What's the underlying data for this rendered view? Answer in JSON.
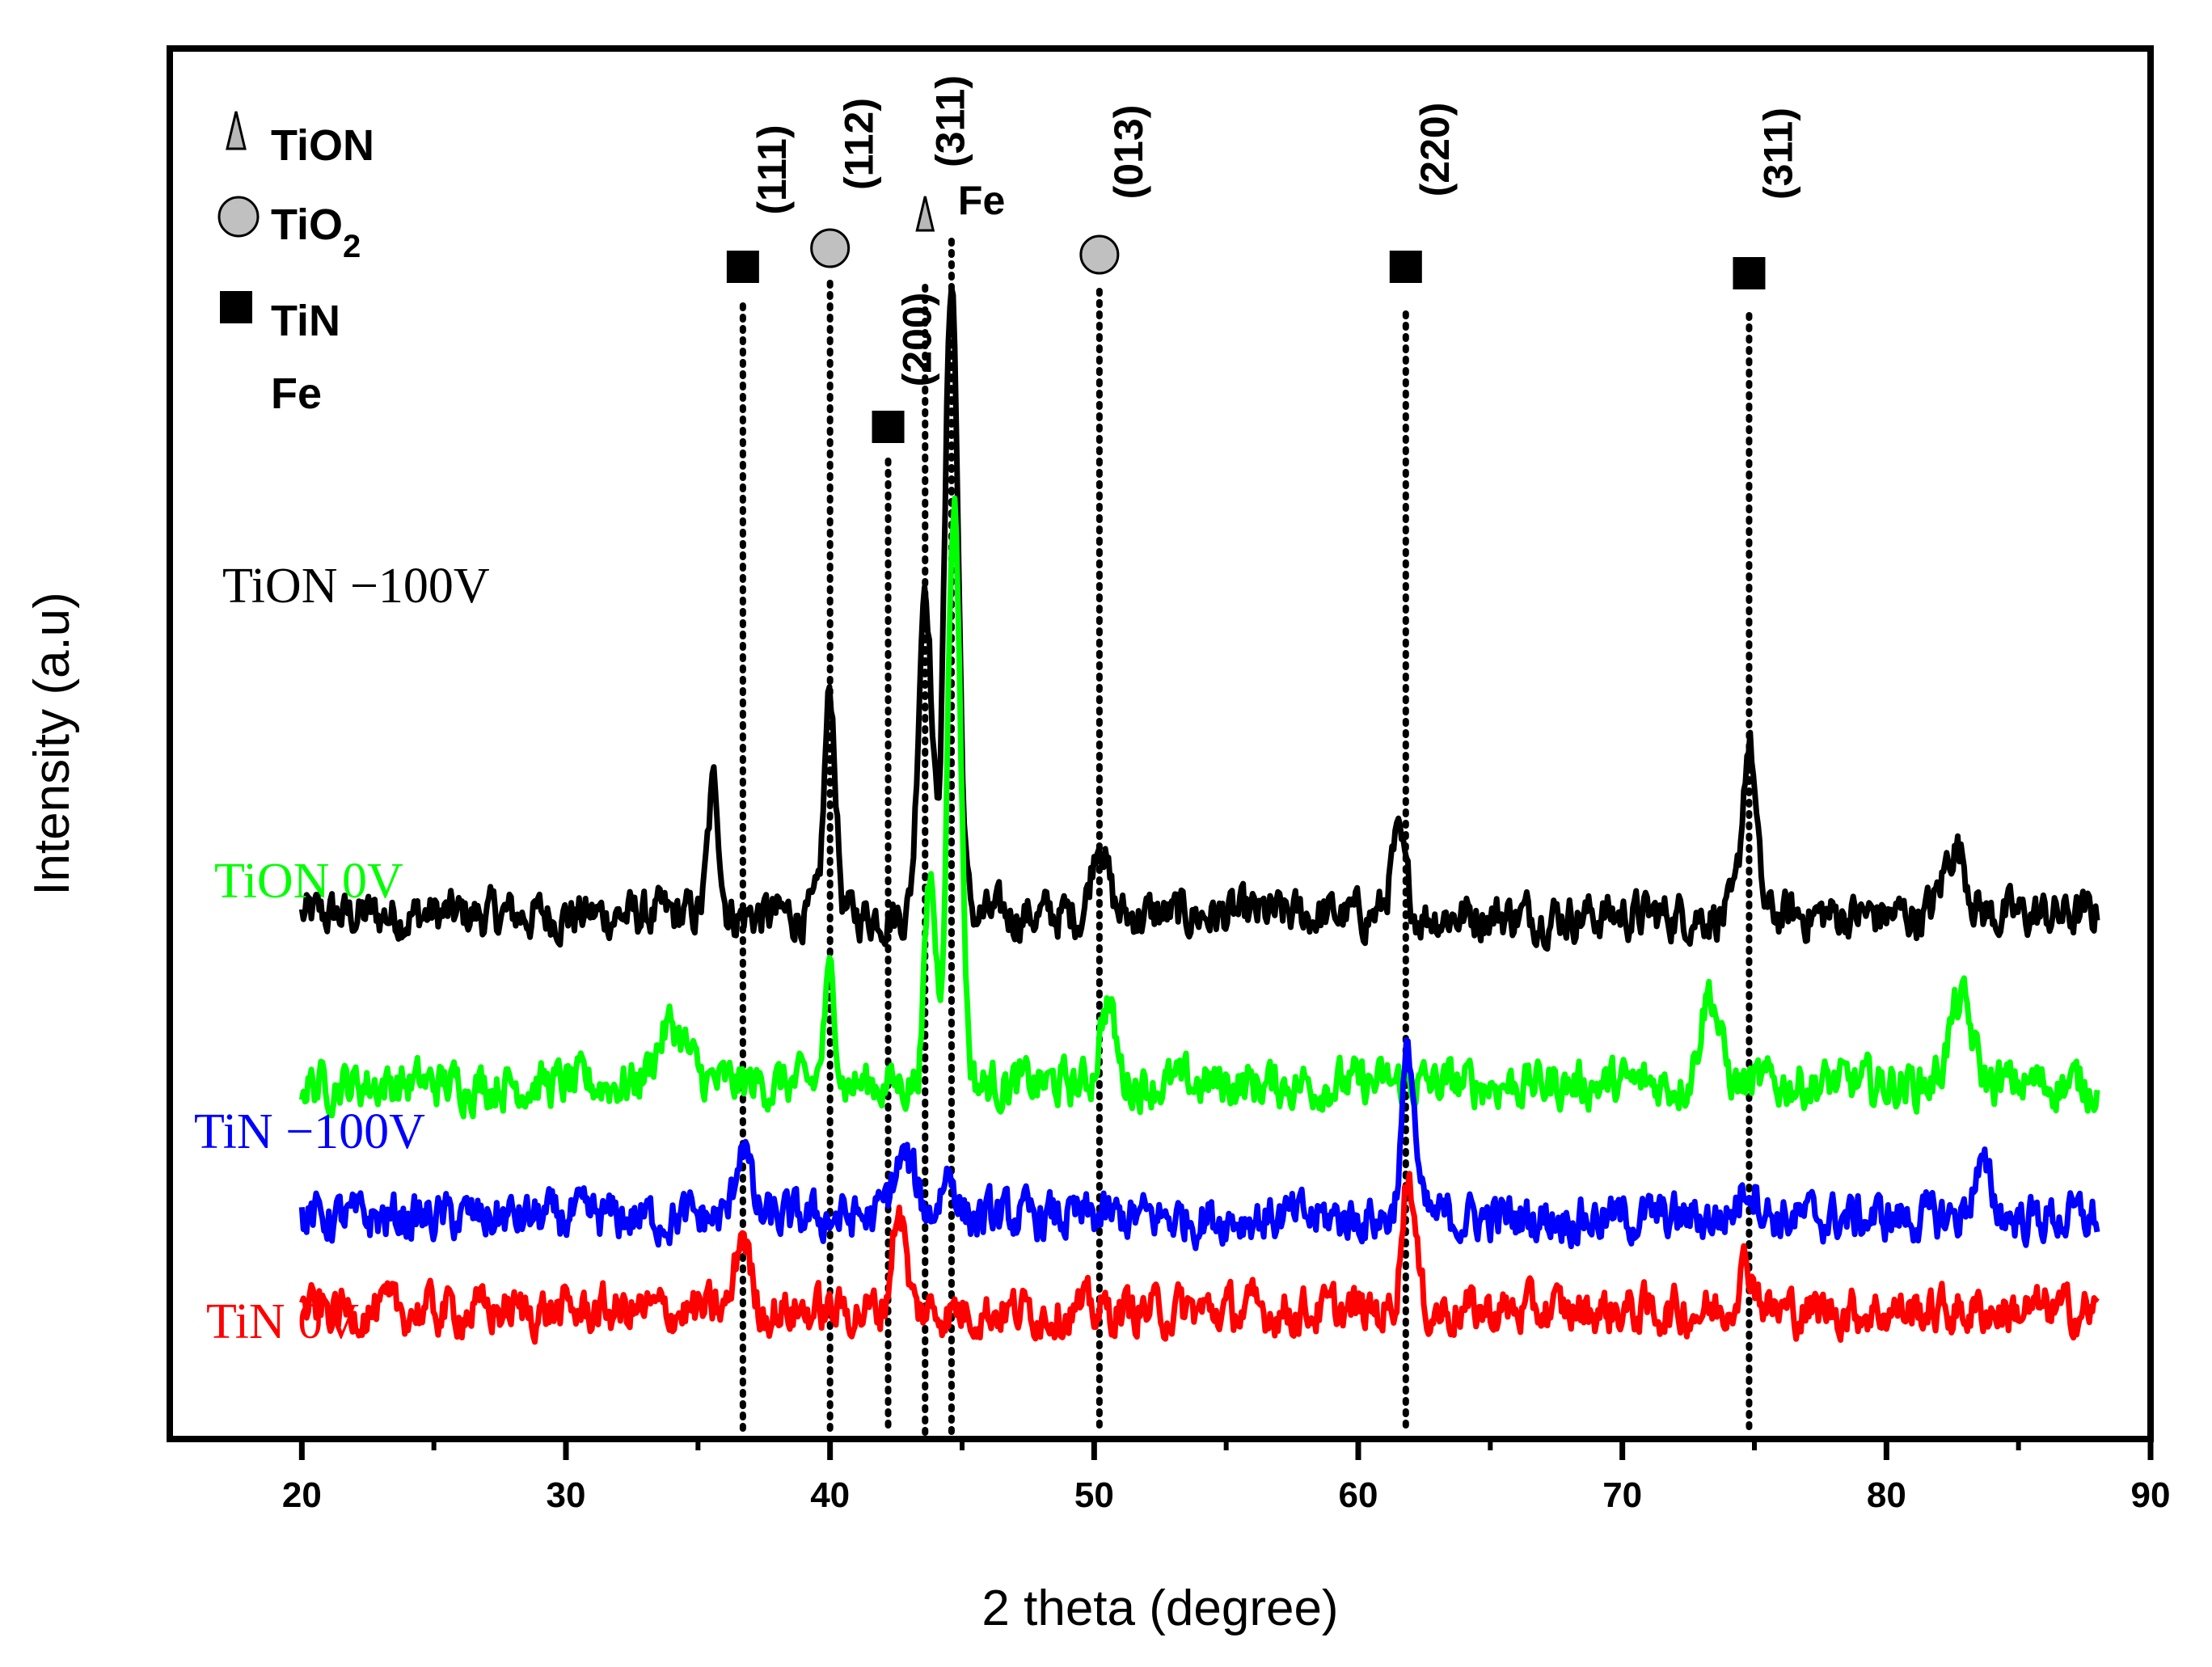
{
  "chart_data": {
    "type": "line",
    "title": "",
    "xlabel": "2 theta (degree)",
    "ylabel": "Intensity (a.u)",
    "xlim": [
      15,
      90
    ],
    "xticks": [
      20,
      30,
      40,
      50,
      60,
      70,
      80,
      90
    ],
    "legend": [
      {
        "symbol": "triangle",
        "label": "TiON"
      },
      {
        "symbol": "circle",
        "label": "TiO",
        "subscript": "2"
      },
      {
        "symbol": "square",
        "label": "TiN"
      },
      {
        "symbol": "none",
        "label": "Fe"
      }
    ],
    "peaks": [
      {
        "x": 36.7,
        "symbol": "square",
        "label": "(111)"
      },
      {
        "x": 40.0,
        "symbol": "circle",
        "label": "(112)"
      },
      {
        "x": 42.2,
        "symbol": "square",
        "label": "(200)"
      },
      {
        "x": 43.6,
        "symbol": "triangle",
        "label": "(311)"
      },
      {
        "x": 44.6,
        "symbol": "none",
        "label": "Fe"
      },
      {
        "x": 50.2,
        "symbol": "circle",
        "label": "(013)"
      },
      {
        "x": 61.8,
        "symbol": "square",
        "label": "(220)"
      },
      {
        "x": 74.8,
        "symbol": "square",
        "label": "(311)"
      }
    ],
    "series": [
      {
        "name": "TiON −100V",
        "color": "#000000",
        "baseline": 60,
        "peaks": [
          [
            35.6,
            0.3,
            22
          ],
          [
            40.0,
            0.3,
            38
          ],
          [
            43.6,
            0.35,
            58
          ],
          [
            44.6,
            0.35,
            110
          ],
          [
            50.2,
            0.4,
            14
          ],
          [
            61.5,
            0.4,
            12
          ],
          [
            74.8,
            0.35,
            30
          ],
          [
            82.6,
            0.6,
            12
          ]
        ]
      },
      {
        "name": "TiON 0V",
        "color": "#00ff00",
        "baseline": 31,
        "peaks": [
          [
            34.0,
            0.8,
            10
          ],
          [
            40.0,
            0.3,
            18
          ],
          [
            43.8,
            0.3,
            35
          ],
          [
            44.7,
            0.35,
            100
          ],
          [
            50.5,
            0.4,
            14
          ],
          [
            73.3,
            0.5,
            16
          ],
          [
            82.8,
            0.6,
            14
          ]
        ]
      },
      {
        "name": "TiN −100V",
        "color": "#0000ff",
        "baseline": 8,
        "peaks": [
          [
            36.7,
            0.35,
            14
          ],
          [
            42.8,
            0.6,
            10
          ],
          [
            44.5,
            0.4,
            8
          ],
          [
            61.9,
            0.35,
            28
          ],
          [
            74.8,
            0.5,
            6
          ],
          [
            83.6,
            0.5,
            8
          ]
        ]
      },
      {
        "name": "TiN 0V",
        "color": "#ff0000",
        "baseline": -8,
        "peaks": [
          [
            36.7,
            0.35,
            14
          ],
          [
            42.6,
            0.35,
            18
          ],
          [
            61.9,
            0.35,
            24
          ],
          [
            74.7,
            0.5,
            8
          ]
        ]
      }
    ]
  }
}
